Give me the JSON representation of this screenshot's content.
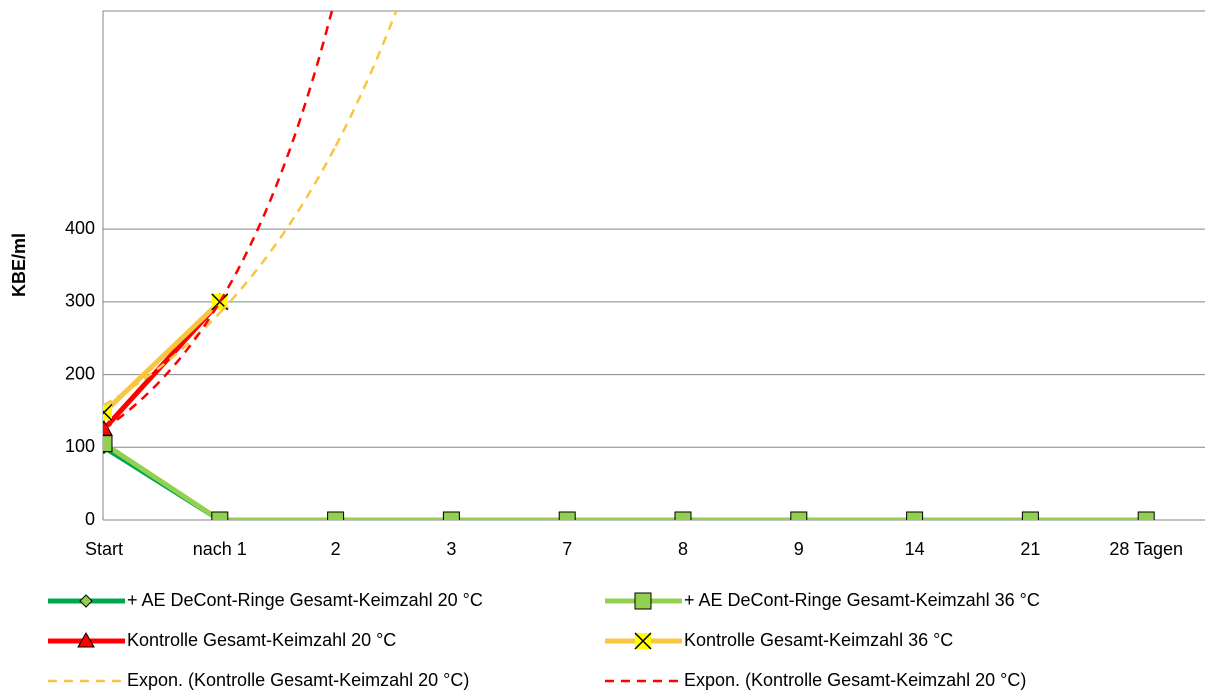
{
  "chart_data": {
    "type": "line",
    "y_label": "KBE/ml",
    "categories": [
      "Start",
      "nach 1",
      "2",
      "3",
      "7",
      "8",
      "9",
      "14",
      "21",
      "28 Tagen"
    ],
    "ylim": [
      0,
      700
    ],
    "yticks": [
      0,
      100,
      200,
      300,
      400
    ],
    "grid": true,
    "series": [
      {
        "name": "+ AE DeCont-Ringe Gesamt-Keimzahl 20 °C",
        "color": "#00a650",
        "marker": "diamond",
        "marker_color": "#92d050",
        "values": [
          100,
          0,
          0,
          0,
          0,
          0,
          0,
          0,
          0,
          0
        ]
      },
      {
        "name": "+ AE DeCont-Ringe Gesamt-Keimzahl 36 °C",
        "color": "#92d050",
        "marker": "square",
        "marker_color": "#92d050",
        "values": [
          105,
          0,
          0,
          0,
          0,
          0,
          0,
          0,
          0,
          0
        ]
      },
      {
        "name": "Kontrolle Gesamt-Keimzahl 20 °C",
        "color": "#ff0000",
        "marker": "triangle",
        "marker_color": "#ff0000",
        "values": [
          125,
          300,
          null,
          null,
          null,
          null,
          null,
          null,
          null,
          null
        ]
      },
      {
        "name": "Kontrolle Gesamt-Keimzahl 36 °C",
        "color": "#f9c642",
        "marker": "x",
        "marker_color": "#ffff00",
        "values": [
          148,
          300,
          null,
          null,
          null,
          null,
          null,
          null,
          null,
          null
        ]
      },
      {
        "name": "Expon. (Kontrolle Gesamt-Keimzahl 20 °C)",
        "color": "#f9c642",
        "trend": "exponential",
        "values": [
          158,
          285,
          514,
          927,
          null,
          null,
          null,
          null,
          null,
          null
        ]
      },
      {
        "name": "Expon. (Kontrolle Gesamt-Keimzahl 20 °C)",
        "color": "#ff0000",
        "trend": "exponential",
        "values": [
          125,
          300,
          720,
          null,
          null,
          null,
          null,
          null,
          null,
          null
        ]
      }
    ]
  }
}
